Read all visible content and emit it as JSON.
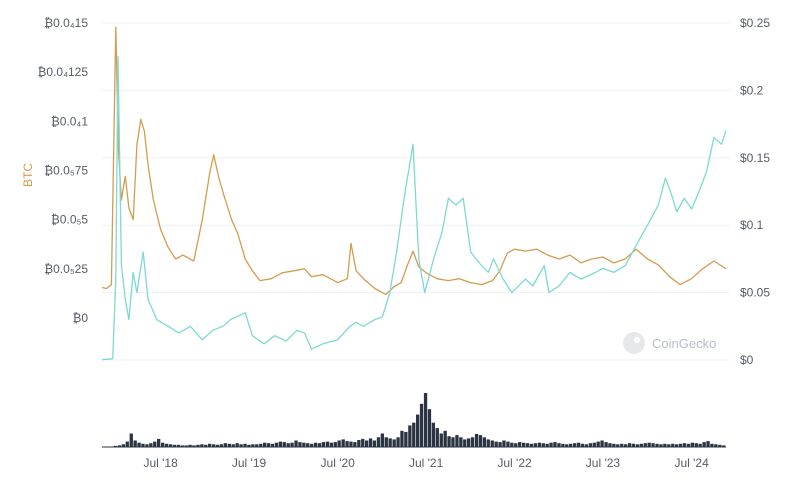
{
  "watermark": {
    "text": "CoinGecko",
    "icon": "coingecko-gecko-icon"
  },
  "chart_data": {
    "type": "line",
    "ylabel_left": "BTC",
    "yleft": {
      "min": 0,
      "max": 0.00015,
      "ticks": [
        0,
        2.5e-05,
        5e-05,
        7.5e-05,
        0.0001,
        0.000125,
        0.00015
      ],
      "tick_labels": [
        "₿0",
        "₿0.0₅25",
        "₿0.0₅5",
        "₿0.0₅75",
        "₿0.0₄1",
        "₿0.0₄125",
        "₿0.0₄15"
      ]
    },
    "yright": {
      "min": 0,
      "max": 0.25,
      "ticks": [
        0,
        0.05,
        0.1,
        0.15,
        0.2,
        0.25
      ],
      "tick_labels": [
        "$0",
        "$0.05",
        "$0.1",
        "$0.15",
        "$0.2",
        "$0.25"
      ]
    },
    "x_range": [
      "2017-11-01",
      "2024-11-20"
    ],
    "x_ticks": [
      "2018-07-01",
      "2019-07-01",
      "2020-07-01",
      "2021-07-01",
      "2022-07-01",
      "2023-07-01",
      "2024-07-01"
    ],
    "x_tick_labels": [
      "Jul '18",
      "Jul '19",
      "Jul '20",
      "Jul '21",
      "Jul '22",
      "Jul '23",
      "Jul '24"
    ],
    "grid": true,
    "series": [
      {
        "color": "#d49c4e",
        "axis": "left",
        "points": [
          [
            "2017-11-01",
            1.55e-05
          ],
          [
            "2017-11-20",
            1.5e-05
          ],
          [
            "2017-12-10",
            1.7e-05
          ],
          [
            "2017-12-28",
            0.000148
          ],
          [
            "2018-01-08",
            8.5e-05
          ],
          [
            "2018-01-20",
            6e-05
          ],
          [
            "2018-02-05",
            7.2e-05
          ],
          [
            "2018-02-20",
            5.6e-05
          ],
          [
            "2018-03-10",
            5e-05
          ],
          [
            "2018-03-25",
            8.8e-05
          ],
          [
            "2018-04-10",
            0.000101
          ],
          [
            "2018-04-25",
            9.5e-05
          ],
          [
            "2018-05-10",
            7.8e-05
          ],
          [
            "2018-06-01",
            6e-05
          ],
          [
            "2018-07-01",
            4.5e-05
          ],
          [
            "2018-08-01",
            3.6e-05
          ],
          [
            "2018-09-01",
            3e-05
          ],
          [
            "2018-10-01",
            3.2e-05
          ],
          [
            "2018-11-15",
            2.9e-05
          ],
          [
            "2018-12-20",
            5e-05
          ],
          [
            "2019-01-20",
            7.4e-05
          ],
          [
            "2019-02-05",
            8.3e-05
          ],
          [
            "2019-02-25",
            7.2e-05
          ],
          [
            "2019-03-20",
            6.2e-05
          ],
          [
            "2019-04-20",
            5e-05
          ],
          [
            "2019-05-15",
            4.3e-05
          ],
          [
            "2019-06-15",
            3e-05
          ],
          [
            "2019-07-15",
            2.4e-05
          ],
          [
            "2019-08-15",
            1.9e-05
          ],
          [
            "2019-10-01",
            2e-05
          ],
          [
            "2019-11-15",
            2.3e-05
          ],
          [
            "2020-01-01",
            2.4e-05
          ],
          [
            "2020-02-15",
            2.5e-05
          ],
          [
            "2020-03-15",
            2.1e-05
          ],
          [
            "2020-05-01",
            2.2e-05
          ],
          [
            "2020-07-01",
            1.8e-05
          ],
          [
            "2020-08-10",
            2e-05
          ],
          [
            "2020-08-25",
            3.8e-05
          ],
          [
            "2020-09-15",
            2.4e-05
          ],
          [
            "2020-10-15",
            2e-05
          ],
          [
            "2020-12-01",
            1.5e-05
          ],
          [
            "2021-01-15",
            1.2e-05
          ],
          [
            "2021-02-20",
            1.6e-05
          ],
          [
            "2021-03-20",
            1.8e-05
          ],
          [
            "2021-04-15",
            2.7e-05
          ],
          [
            "2021-05-08",
            3.4e-05
          ],
          [
            "2021-06-01",
            2.6e-05
          ],
          [
            "2021-07-01",
            2.3e-05
          ],
          [
            "2021-08-15",
            2e-05
          ],
          [
            "2021-10-01",
            1.9e-05
          ],
          [
            "2021-11-15",
            2e-05
          ],
          [
            "2022-01-01",
            1.8e-05
          ],
          [
            "2022-02-15",
            1.7e-05
          ],
          [
            "2022-04-01",
            1.9e-05
          ],
          [
            "2022-05-01",
            2.4e-05
          ],
          [
            "2022-06-01",
            3.3e-05
          ],
          [
            "2022-07-01",
            3.5e-05
          ],
          [
            "2022-08-15",
            3.4e-05
          ],
          [
            "2022-10-01",
            3.5e-05
          ],
          [
            "2022-11-15",
            3.2e-05
          ],
          [
            "2023-01-01",
            3e-05
          ],
          [
            "2023-02-15",
            3.2e-05
          ],
          [
            "2023-04-01",
            2.8e-05
          ],
          [
            "2023-05-15",
            3e-05
          ],
          [
            "2023-07-01",
            3.1e-05
          ],
          [
            "2023-08-15",
            2.8e-05
          ],
          [
            "2023-10-01",
            3e-05
          ],
          [
            "2023-11-15",
            3.5e-05
          ],
          [
            "2024-01-01",
            3e-05
          ],
          [
            "2024-02-15",
            2.7e-05
          ],
          [
            "2024-04-01",
            2.1e-05
          ],
          [
            "2024-05-15",
            1.7e-05
          ],
          [
            "2024-07-01",
            2e-05
          ],
          [
            "2024-08-15",
            2.5e-05
          ],
          [
            "2024-10-01",
            2.9e-05
          ],
          [
            "2024-11-20",
            2.5e-05
          ]
        ]
      },
      {
        "color": "#7dd9d3",
        "axis": "right",
        "points": [
          [
            "2017-11-01",
            0.0002
          ],
          [
            "2017-12-15",
            0.001
          ],
          [
            "2017-12-28",
            0.06
          ],
          [
            "2018-01-06",
            0.225
          ],
          [
            "2018-01-20",
            0.07
          ],
          [
            "2018-02-05",
            0.045
          ],
          [
            "2018-02-20",
            0.03
          ],
          [
            "2018-03-10",
            0.065
          ],
          [
            "2018-03-25",
            0.05
          ],
          [
            "2018-04-20",
            0.08
          ],
          [
            "2018-05-10",
            0.045
          ],
          [
            "2018-06-15",
            0.03
          ],
          [
            "2018-08-01",
            0.025
          ],
          [
            "2018-09-15",
            0.02
          ],
          [
            "2018-11-01",
            0.025
          ],
          [
            "2018-12-20",
            0.015
          ],
          [
            "2019-02-01",
            0.022
          ],
          [
            "2019-03-15",
            0.025
          ],
          [
            "2019-04-15",
            0.03
          ],
          [
            "2019-06-15",
            0.035
          ],
          [
            "2019-07-15",
            0.018
          ],
          [
            "2019-09-01",
            0.012
          ],
          [
            "2019-10-15",
            0.018
          ],
          [
            "2019-12-01",
            0.014
          ],
          [
            "2020-01-15",
            0.022
          ],
          [
            "2020-02-15",
            0.02
          ],
          [
            "2020-03-15",
            0.008
          ],
          [
            "2020-05-01",
            0.012
          ],
          [
            "2020-07-01",
            0.015
          ],
          [
            "2020-08-20",
            0.025
          ],
          [
            "2020-09-15",
            0.028
          ],
          [
            "2020-10-15",
            0.025
          ],
          [
            "2020-12-01",
            0.03
          ],
          [
            "2021-01-01",
            0.032
          ],
          [
            "2021-02-01",
            0.05
          ],
          [
            "2021-03-01",
            0.08
          ],
          [
            "2021-04-01",
            0.12
          ],
          [
            "2021-05-08",
            0.16
          ],
          [
            "2021-06-01",
            0.075
          ],
          [
            "2021-06-25",
            0.05
          ],
          [
            "2021-08-01",
            0.075
          ],
          [
            "2021-09-05",
            0.095
          ],
          [
            "2021-10-01",
            0.12
          ],
          [
            "2021-11-01",
            0.115
          ],
          [
            "2021-12-01",
            0.12
          ],
          [
            "2022-01-01",
            0.08
          ],
          [
            "2022-02-15",
            0.07
          ],
          [
            "2022-03-15",
            0.065
          ],
          [
            "2022-04-05",
            0.075
          ],
          [
            "2022-05-15",
            0.06
          ],
          [
            "2022-06-20",
            0.05
          ],
          [
            "2022-08-15",
            0.06
          ],
          [
            "2022-09-15",
            0.055
          ],
          [
            "2022-11-01",
            0.07
          ],
          [
            "2022-11-20",
            0.05
          ],
          [
            "2023-01-01",
            0.055
          ],
          [
            "2023-02-15",
            0.065
          ],
          [
            "2023-04-01",
            0.06
          ],
          [
            "2023-06-01",
            0.065
          ],
          [
            "2023-07-01",
            0.068
          ],
          [
            "2023-08-15",
            0.065
          ],
          [
            "2023-10-01",
            0.07
          ],
          [
            "2023-11-15",
            0.085
          ],
          [
            "2024-01-01",
            0.1
          ],
          [
            "2024-02-15",
            0.115
          ],
          [
            "2024-03-15",
            0.135
          ],
          [
            "2024-04-05",
            0.125
          ],
          [
            "2024-05-01",
            0.11
          ],
          [
            "2024-06-01",
            0.12
          ],
          [
            "2024-07-01",
            0.112
          ],
          [
            "2024-08-01",
            0.125
          ],
          [
            "2024-09-01",
            0.14
          ],
          [
            "2024-10-01",
            0.165
          ],
          [
            "2024-11-01",
            0.16
          ],
          [
            "2024-11-20",
            0.17
          ]
        ]
      }
    ],
    "volume": {
      "color": "#2b3442",
      "values": [
        0.02,
        0.03,
        0.05,
        0.1,
        0.25,
        0.12,
        0.08,
        0.06,
        0.05,
        0.07,
        0.1,
        0.15,
        0.08,
        0.06,
        0.05,
        0.04,
        0.04,
        0.03,
        0.03,
        0.04,
        0.03,
        0.04,
        0.05,
        0.04,
        0.06,
        0.05,
        0.04,
        0.05,
        0.07,
        0.06,
        0.05,
        0.07,
        0.05,
        0.06,
        0.04,
        0.05,
        0.05,
        0.06,
        0.08,
        0.07,
        0.06,
        0.08,
        0.1,
        0.09,
        0.07,
        0.08,
        0.12,
        0.09,
        0.08,
        0.07,
        0.06,
        0.08,
        0.07,
        0.09,
        0.1,
        0.08,
        0.09,
        0.12,
        0.14,
        0.11,
        0.1,
        0.09,
        0.13,
        0.15,
        0.12,
        0.16,
        0.12,
        0.18,
        0.25,
        0.18,
        0.16,
        0.14,
        0.18,
        0.3,
        0.28,
        0.4,
        0.45,
        0.6,
        0.8,
        1.0,
        0.7,
        0.45,
        0.35,
        0.25,
        0.3,
        0.2,
        0.18,
        0.22,
        0.18,
        0.14,
        0.16,
        0.18,
        0.24,
        0.22,
        0.18,
        0.14,
        0.12,
        0.1,
        0.09,
        0.12,
        0.1,
        0.08,
        0.07,
        0.09,
        0.08,
        0.07,
        0.06,
        0.07,
        0.08,
        0.07,
        0.06,
        0.08,
        0.09,
        0.07,
        0.06,
        0.05,
        0.06,
        0.07,
        0.08,
        0.06,
        0.05,
        0.07,
        0.08,
        0.1,
        0.12,
        0.09,
        0.07,
        0.06,
        0.05,
        0.06,
        0.05,
        0.07,
        0.06,
        0.05,
        0.06,
        0.07,
        0.08,
        0.07,
        0.06,
        0.05,
        0.06,
        0.05,
        0.06,
        0.05,
        0.06,
        0.07,
        0.06,
        0.08,
        0.07,
        0.06,
        0.09,
        0.11,
        0.06,
        0.05,
        0.04,
        0.03
      ]
    }
  }
}
